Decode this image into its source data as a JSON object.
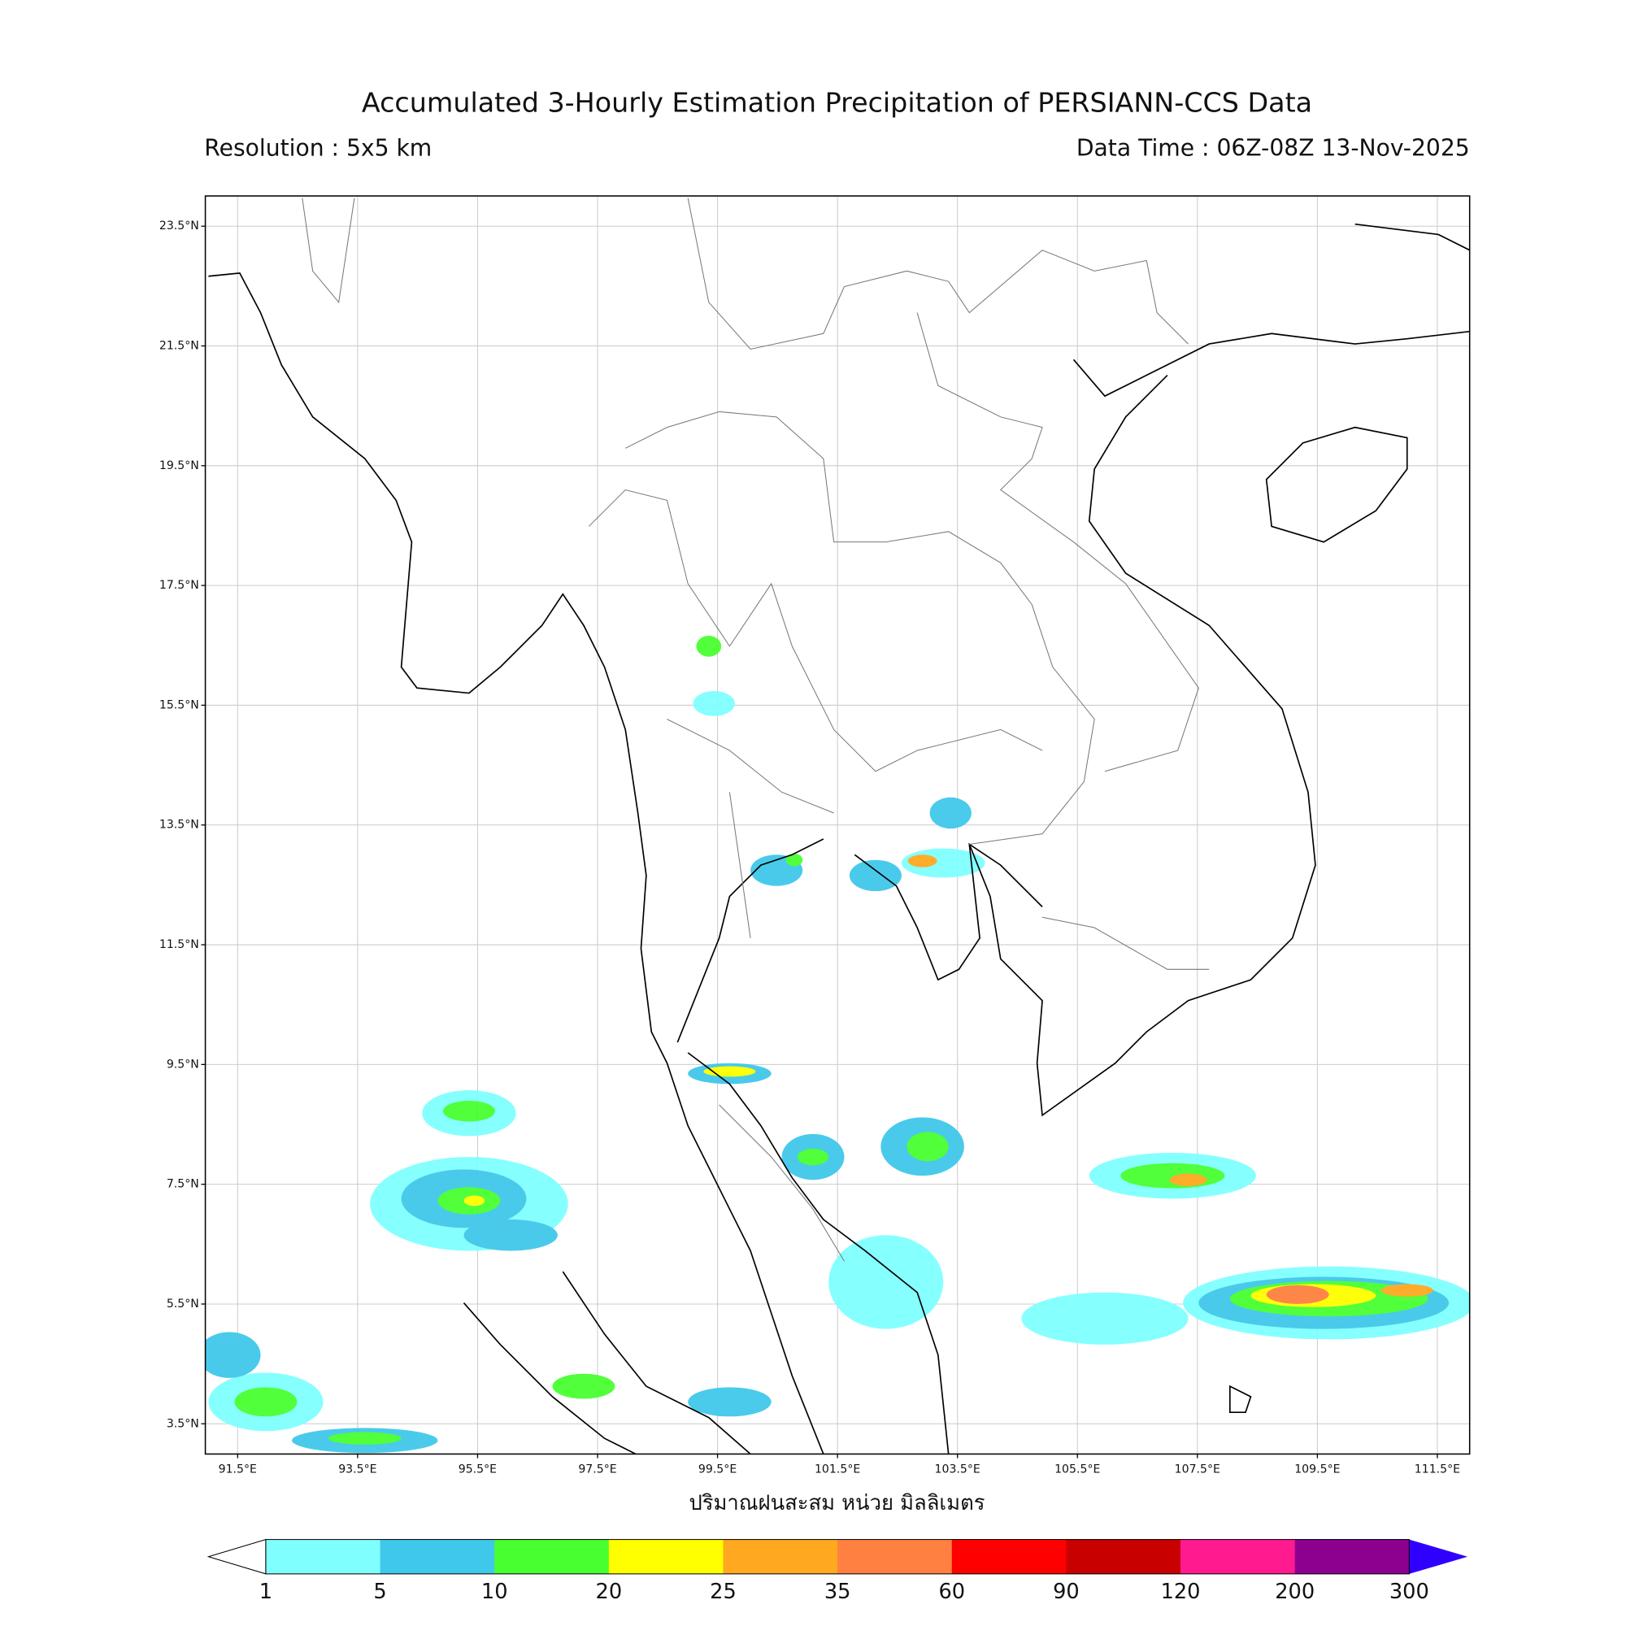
{
  "title": "Accumulated 3-Hourly Estimation Precipitation of PERSIANN-CCS Data",
  "resolution": "Resolution : 5x5 km",
  "data_time": "Data Time : 06Z-08Z 13-Nov-2025",
  "map": {
    "lat_labels": [
      "23.5°N",
      "21.5°N",
      "19.5°N",
      "17.5°N",
      "15.5°N",
      "13.5°N",
      "11.5°N",
      "9.5°N",
      "7.5°N",
      "5.5°N",
      "3.5°N"
    ],
    "lon_labels": [
      "91.5°E",
      "93.5°E",
      "95.5°E",
      "97.5°E",
      "99.5°E",
      "101.5°E",
      "103.5°E",
      "105.5°E",
      "107.5°E",
      "109.5°E",
      "111.5°E"
    ],
    "x_label": "ปริมาณฝนสะสม หน่วย มิลลิเมตร"
  },
  "colorbar": {
    "bounds": [
      "1",
      "5",
      "10",
      "20",
      "25",
      "35",
      "60",
      "90",
      "120",
      "200",
      "300"
    ],
    "colors": [
      "#80ffff",
      "#40c8ea",
      "#48ff30",
      "#ffff00",
      "#ffa820",
      "#ff8040",
      "#ff0000",
      "#c80000",
      "#ff1a90",
      "#8c0090"
    ],
    "under_color": "#ffffff",
    "over_color": "#3000ff"
  }
}
